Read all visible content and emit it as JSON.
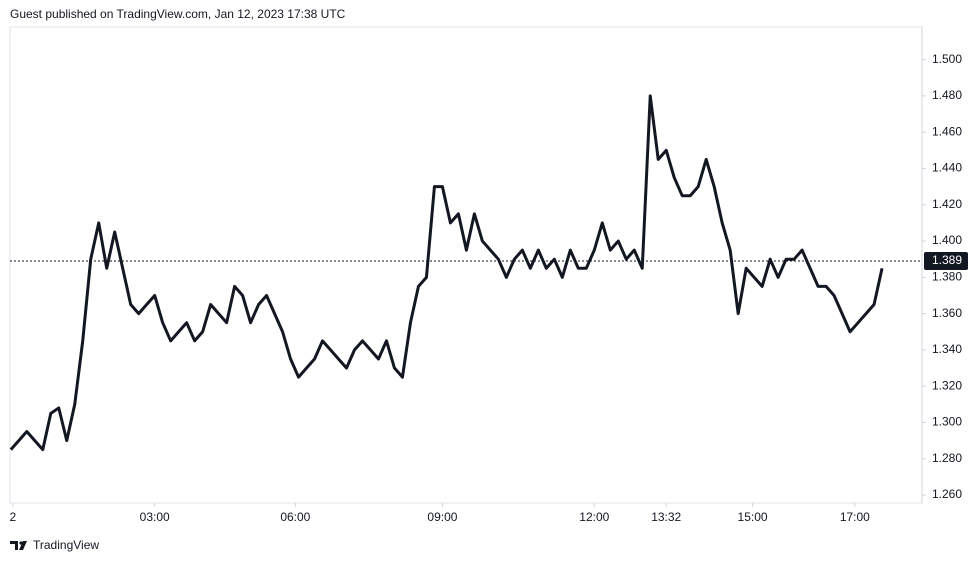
{
  "header": {
    "text": "Guest published on TradingView.com, Jan 12, 2023 17:38 UTC"
  },
  "footer": {
    "logo": "TradingView"
  },
  "chart_data": {
    "type": "line",
    "x": [
      0,
      1,
      2,
      3,
      4,
      5,
      6,
      7,
      8,
      9,
      10,
      11,
      12,
      13,
      14,
      15,
      16,
      17,
      18,
      19,
      20,
      21,
      22,
      23,
      24,
      25,
      26,
      27,
      28,
      29,
      30,
      31,
      32,
      33,
      34,
      35,
      36,
      37,
      38,
      39,
      40,
      41,
      42,
      43,
      44,
      45,
      46,
      47,
      48,
      49,
      50,
      51,
      52,
      53,
      54,
      55,
      56,
      57,
      58,
      59,
      60,
      61,
      62,
      63,
      64,
      65,
      66,
      67,
      68,
      69,
      70,
      71,
      72,
      73,
      74,
      75,
      76,
      77,
      78,
      79,
      80,
      81,
      82,
      83,
      84,
      85,
      86,
      87,
      88,
      89,
      90,
      91,
      92,
      93,
      94,
      95,
      96,
      97,
      98,
      99,
      100,
      101,
      102,
      103,
      104,
      105,
      106,
      107,
      108,
      109
    ],
    "series": [
      {
        "color": "#131722",
        "values": [
          1.285,
          1.29,
          1.295,
          1.29,
          1.285,
          1.305,
          1.308,
          1.29,
          1.31,
          1.345,
          1.39,
          1.41,
          1.385,
          1.405,
          1.385,
          1.365,
          1.36,
          1.365,
          1.37,
          1.355,
          1.345,
          1.35,
          1.355,
          1.345,
          1.35,
          1.365,
          1.36,
          1.355,
          1.375,
          1.37,
          1.355,
          1.365,
          1.37,
          1.36,
          1.35,
          1.335,
          1.325,
          1.33,
          1.335,
          1.345,
          1.34,
          1.335,
          1.33,
          1.34,
          1.345,
          1.34,
          1.335,
          1.345,
          1.33,
          1.325,
          1.355,
          1.375,
          1.38,
          1.43,
          1.43,
          1.41,
          1.415,
          1.395,
          1.415,
          1.4,
          1.395,
          1.39,
          1.38,
          1.39,
          1.395,
          1.385,
          1.395,
          1.385,
          1.39,
          1.38,
          1.395,
          1.385,
          1.385,
          1.395,
          1.41,
          1.395,
          1.4,
          1.39,
          1.395,
          1.385,
          1.48,
          1.445,
          1.45,
          1.435,
          1.425,
          1.425,
          1.43,
          1.445,
          1.43,
          1.41,
          1.395,
          1.36,
          1.385,
          1.38,
          1.375,
          1.39,
          1.38,
          1.39,
          1.39,
          1.395,
          1.385,
          1.375,
          1.375,
          1.37,
          1.36,
          1.35,
          1.355,
          1.36,
          1.365,
          1.385
        ]
      }
    ],
    "last_price": 1.389,
    "xlim": [
      -0.1,
      114
    ],
    "xticks": [
      {
        "value": 0.25,
        "label": "2"
      },
      {
        "value": 18,
        "label": "03:00"
      },
      {
        "value": 35.6,
        "label": "06:00"
      },
      {
        "value": 54,
        "label": "09:00"
      },
      {
        "value": 73,
        "label": "12:00"
      },
      {
        "value": 82,
        "label": "13:32"
      },
      {
        "value": 92.8,
        "label": "15:00"
      },
      {
        "value": 105.6,
        "label": "17:00"
      }
    ],
    "ylim": [
      1.2556,
      1.518
    ],
    "yticks": [
      {
        "value": 1.26,
        "label": "1.260"
      },
      {
        "value": 1.28,
        "label": "1.280"
      },
      {
        "value": 1.3,
        "label": "1.300"
      },
      {
        "value": 1.32,
        "label": "1.320"
      },
      {
        "value": 1.34,
        "label": "1.340"
      },
      {
        "value": 1.36,
        "label": "1.360"
      },
      {
        "value": 1.38,
        "label": "1.380"
      },
      {
        "value": 1.4,
        "label": "1.400"
      },
      {
        "value": 1.42,
        "label": "1.420"
      },
      {
        "value": 1.44,
        "label": "1.440"
      },
      {
        "value": 1.46,
        "label": "1.460"
      },
      {
        "value": 1.48,
        "label": "1.480"
      },
      {
        "value": 1.5,
        "label": "1.500"
      }
    ]
  }
}
